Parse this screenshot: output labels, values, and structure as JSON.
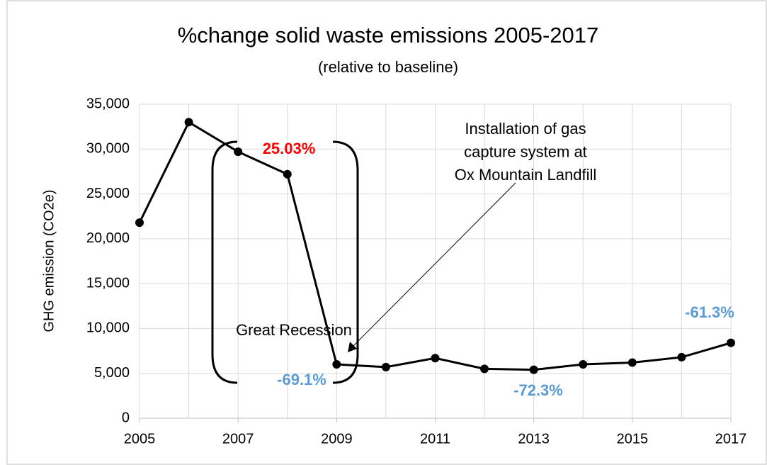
{
  "chart_data": {
    "type": "line",
    "title": "%change solid waste emissions 2005-2017",
    "subtitle": "(relative to baseline)",
    "y_label": "GHG emission (CO2e)",
    "x": [
      2005,
      2006,
      2007,
      2008,
      2009,
      2010,
      2011,
      2012,
      2013,
      2014,
      2015,
      2016,
      2017
    ],
    "series": [
      {
        "color": "#000000",
        "values": [
          21800,
          33000,
          29700,
          27200,
          6000,
          5700,
          6700,
          5500,
          5400,
          6000,
          6200,
          6800,
          8400
        ]
      }
    ],
    "xlim": [
      2005,
      2017
    ],
    "xticks": [
      2005,
      2007,
      2009,
      2011,
      2013,
      2015,
      2017
    ],
    "ylim": [
      0,
      35000
    ],
    "yticks": [
      0,
      {
        "value": 5000,
        "label": "5,000"
      },
      {
        "value": 10000,
        "label": "10,000"
      },
      {
        "value": 15000,
        "label": "15,000"
      },
      {
        "value": 20000,
        "label": "20,000"
      },
      {
        "value": 25000,
        "label": "25,000"
      },
      {
        "value": 30000,
        "label": "30,000"
      },
      {
        "value": 35000,
        "label": "35,000"
      }
    ],
    "grid": true,
    "annotations": [
      {
        "text": "25.03%",
        "color": "#ff0000"
      },
      {
        "lines": [
          "Installation of gas",
          "capture system at",
          "Ox Mountain Landfill"
        ],
        "color": "#000000"
      },
      {
        "text": "Great Recession",
        "color": "#000000"
      },
      {
        "text": "-69.1%",
        "color": "#5b9bd5"
      },
      {
        "text": "-72.3%",
        "color": "#5b9bd5"
      },
      {
        "text": "-61.3%",
        "color": "#5b9bd5"
      }
    ]
  }
}
